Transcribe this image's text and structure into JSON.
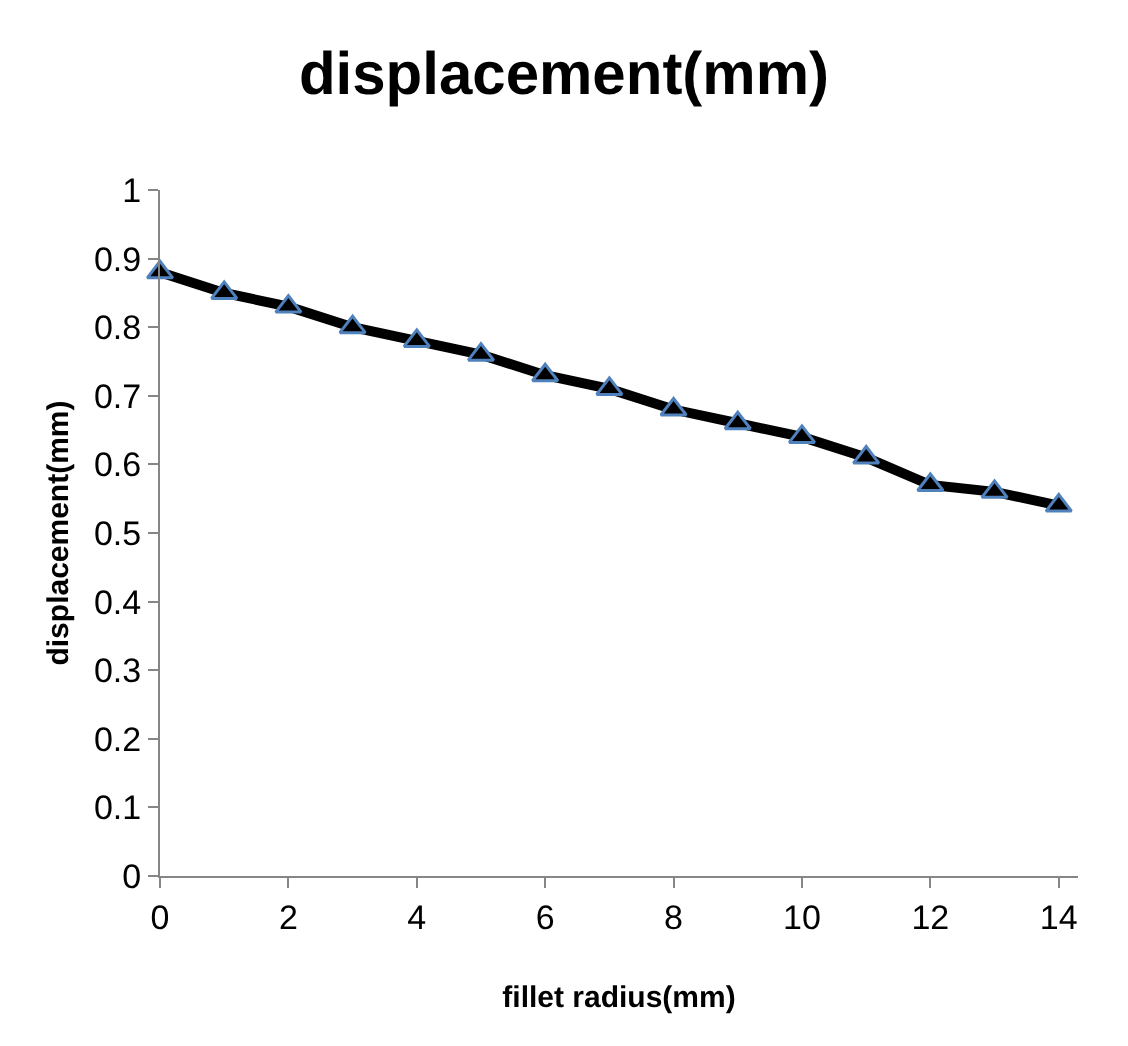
{
  "chart_data": {
    "type": "line",
    "title": "displacement(mm)",
    "xlabel": "fillet radius(mm)",
    "ylabel": "displacement(mm)",
    "x": [
      0,
      1,
      2,
      3,
      4,
      5,
      6,
      7,
      8,
      9,
      10,
      11,
      12,
      13,
      14
    ],
    "series": [
      {
        "color": "#000000",
        "values": [
          0.88,
          0.85,
          0.83,
          0.8,
          0.78,
          0.76,
          0.73,
          0.71,
          0.68,
          0.66,
          0.64,
          0.61,
          0.57,
          0.56,
          0.54
        ]
      }
    ],
    "xlim": [
      0,
      14.3
    ],
    "xticks": [
      0,
      2,
      4,
      6,
      8,
      10,
      12,
      14
    ],
    "ylim": [
      0,
      1
    ],
    "yticks": [
      0,
      {
        "value": 0.1,
        "label": "0.1"
      },
      {
        "value": 0.2,
        "label": "0.2"
      },
      {
        "value": 0.3,
        "label": "0.3"
      },
      {
        "value": 0.4,
        "label": "0.4"
      },
      {
        "value": 0.5,
        "label": "0.5"
      },
      {
        "value": 0.6,
        "label": "0.6"
      },
      {
        "value": 0.7,
        "label": "0.7"
      },
      {
        "value": 0.8,
        "label": "0.8"
      },
      {
        "value": 0.9,
        "label": "0.9"
      },
      1
    ],
    "legend": false,
    "marker": "triangle",
    "line_style": "solid"
  }
}
